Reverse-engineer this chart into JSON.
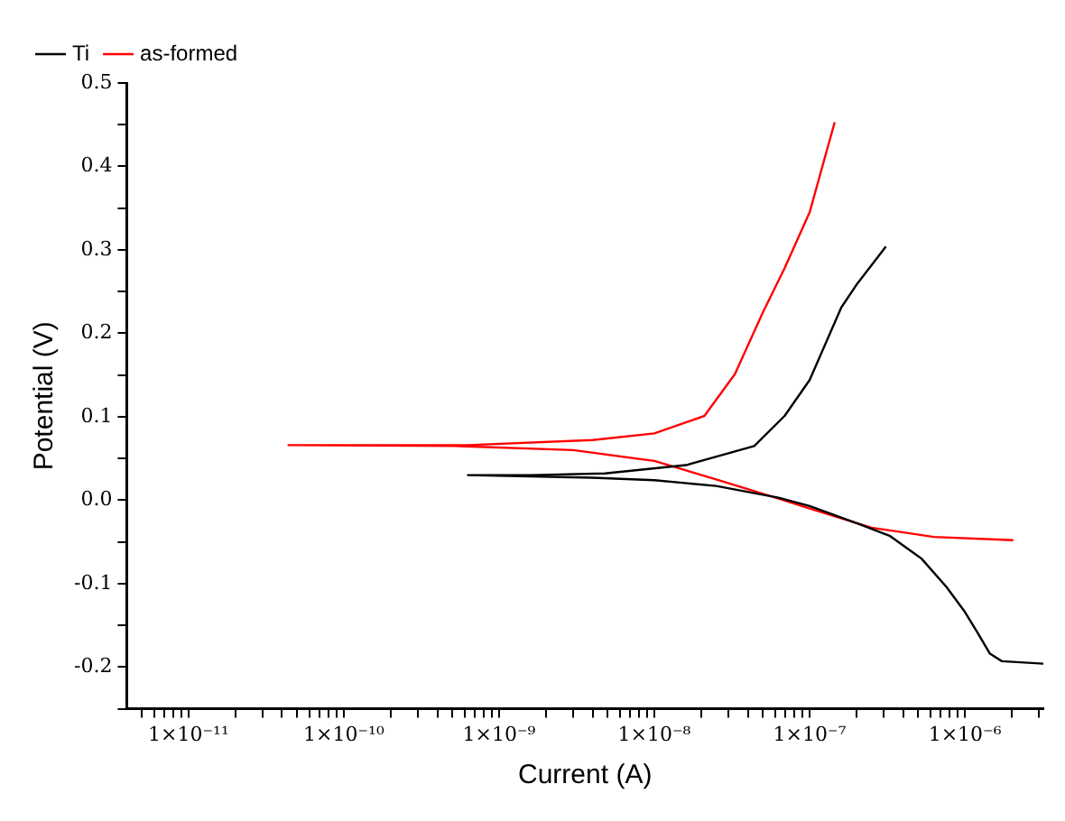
{
  "chart_data": {
    "type": "line",
    "xlabel": "Current (A)",
    "ylabel": "Potential (V)",
    "log": "x",
    "grid": false,
    "legend": "top left",
    "marker": "none",
    "line_style": "solid",
    "xlim": [
      4e-12,
      3.2e-06
    ],
    "ylim": [
      -0.25,
      0.5
    ],
    "xticks": [
      {
        "value": 5e-12,
        "label": null
      },
      {
        "value": 6e-12,
        "label": null
      },
      {
        "value": 7e-12,
        "label": null
      },
      {
        "value": 8e-12,
        "label": null
      },
      {
        "value": 9e-12,
        "label": null
      },
      {
        "value": 1e-11,
        "label": "1×10⁻¹¹"
      },
      {
        "value": 2e-11,
        "label": null
      },
      {
        "value": 3e-11,
        "label": null
      },
      {
        "value": 4e-11,
        "label": null
      },
      {
        "value": 5e-11,
        "label": null
      },
      {
        "value": 6e-11,
        "label": null
      },
      {
        "value": 7e-11,
        "label": null
      },
      {
        "value": 8e-11,
        "label": null
      },
      {
        "value": 9e-11,
        "label": null
      },
      {
        "value": 1e-10,
        "label": "1×10⁻¹⁰"
      },
      {
        "value": 2e-10,
        "label": null
      },
      {
        "value": 3e-10,
        "label": null
      },
      {
        "value": 4e-10,
        "label": null
      },
      {
        "value": 5e-10,
        "label": null
      },
      {
        "value": 6e-10,
        "label": null
      },
      {
        "value": 7e-10,
        "label": null
      },
      {
        "value": 8e-10,
        "label": null
      },
      {
        "value": 9e-10,
        "label": null
      },
      {
        "value": 1e-09,
        "label": "1×10⁻⁹"
      },
      {
        "value": 2e-09,
        "label": null
      },
      {
        "value": 3e-09,
        "label": null
      },
      {
        "value": 4e-09,
        "label": null
      },
      {
        "value": 5e-09,
        "label": null
      },
      {
        "value": 6e-09,
        "label": null
      },
      {
        "value": 7e-09,
        "label": null
      },
      {
        "value": 8e-09,
        "label": null
      },
      {
        "value": 9e-09,
        "label": null
      },
      {
        "value": 1e-08,
        "label": "1×10⁻⁸"
      },
      {
        "value": 2e-08,
        "label": null
      },
      {
        "value": 3e-08,
        "label": null
      },
      {
        "value": 4e-08,
        "label": null
      },
      {
        "value": 5e-08,
        "label": null
      },
      {
        "value": 6e-08,
        "label": null
      },
      {
        "value": 7e-08,
        "label": null
      },
      {
        "value": 8e-08,
        "label": null
      },
      {
        "value": 9e-08,
        "label": null
      },
      {
        "value": 1e-07,
        "label": "1×10⁻⁷"
      },
      {
        "value": 2e-07,
        "label": null
      },
      {
        "value": 3e-07,
        "label": null
      },
      {
        "value": 4e-07,
        "label": null
      },
      {
        "value": 5e-07,
        "label": null
      },
      {
        "value": 6e-07,
        "label": null
      },
      {
        "value": 7e-07,
        "label": null
      },
      {
        "value": 8e-07,
        "label": null
      },
      {
        "value": 9e-07,
        "label": null
      },
      {
        "value": 1e-06,
        "label": "1×10⁻⁶"
      },
      {
        "value": 2e-06,
        "label": null
      },
      {
        "value": 3e-06,
        "label": null
      }
    ],
    "yticks": [
      {
        "value": -0.25,
        "label": null
      },
      -0.2,
      {
        "value": -0.15,
        "label": null
      },
      -0.1,
      {
        "value": -0.05,
        "label": null
      },
      {
        "value": 0,
        "label": "0.0"
      },
      {
        "value": 0.05,
        "label": null
      },
      0.1,
      {
        "value": 0.15,
        "label": null
      },
      0.2,
      {
        "value": 0.25,
        "label": null
      },
      0.3,
      {
        "value": 0.35,
        "label": null
      },
      0.4,
      {
        "value": 0.45,
        "label": null
      },
      0.5
    ],
    "series": [
      {
        "name": "Ti",
        "color": "#000000",
        "x": [
          3.2e-06,
          1.73e-06,
          1.45e-06,
          1.2e-06,
          1e-06,
          7.6e-07,
          5.25e-07,
          3.3e-07,
          2.1e-07,
          1e-07,
          6.3e-08,
          2.5e-08,
          1e-08,
          4e-09,
          6.3e-10,
          1.6e-09,
          4.8e-09,
          1.6e-08,
          4.4e-08,
          6.9e-08,
          1e-07,
          1.6e-07,
          2e-07,
          3.1e-07
        ],
        "values": [
          -0.196,
          -0.193,
          -0.184,
          -0.158,
          -0.134,
          -0.104,
          -0.07,
          -0.043,
          -0.029,
          -0.007,
          0.003,
          0.017,
          0.024,
          0.027,
          0.03,
          0.03,
          0.032,
          0.042,
          0.065,
          0.101,
          0.144,
          0.231,
          0.258,
          0.304
        ]
      },
      {
        "name": "as-formed",
        "color": "#ff0000",
        "x": [
          2.05e-06,
          6.3e-07,
          2.5e-07,
          1e-07,
          6.3e-08,
          2.5e-08,
          1e-08,
          3e-09,
          5.2e-10,
          4.4e-11,
          6.3e-10,
          4e-09,
          1e-08,
          2.1e-08,
          3.3e-08,
          5e-08,
          6.9e-08,
          1e-07,
          1.45e-07
        ],
        "values": [
          -0.048,
          -0.044,
          -0.033,
          -0.01,
          0.002,
          0.025,
          0.047,
          0.06,
          0.065,
          0.066,
          0.066,
          0.072,
          0.08,
          0.101,
          0.151,
          0.225,
          0.278,
          0.345,
          0.453
        ]
      }
    ]
  }
}
